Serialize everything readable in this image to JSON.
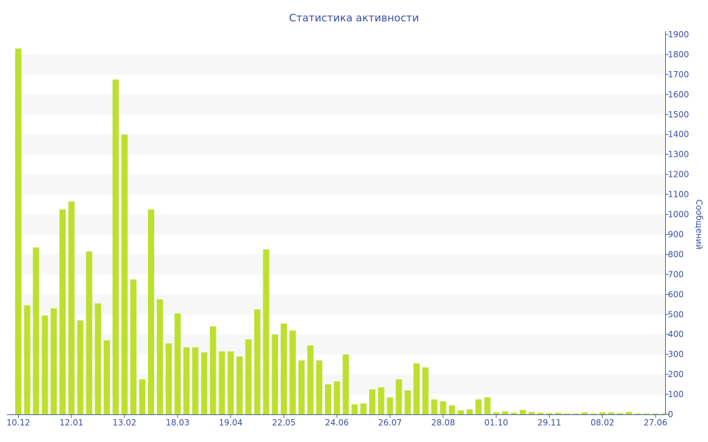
{
  "chart_data": {
    "type": "bar",
    "title": "Статистика активности",
    "ylabel": "Сообщений",
    "xlabel": "",
    "ylim": [
      0,
      1900
    ],
    "y_ticks": [
      0,
      100,
      200,
      300,
      400,
      500,
      600,
      700,
      800,
      900,
      1000,
      1100,
      1200,
      1300,
      1400,
      1500,
      1600,
      1700,
      1800,
      1900
    ],
    "x_tick_labels": [
      "10.12",
      "12.01",
      "13.02",
      "18.03",
      "19.04",
      "22.05",
      "24.06",
      "26.07",
      "28.08",
      "01.10",
      "29.11",
      "08.02",
      "27.06"
    ],
    "x_tick_every": 6,
    "values": [
      1830,
      545,
      835,
      495,
      530,
      1025,
      1065,
      470,
      815,
      555,
      370,
      1675,
      1400,
      675,
      175,
      1025,
      575,
      355,
      505,
      335,
      335,
      310,
      440,
      315,
      315,
      290,
      375,
      525,
      825,
      400,
      455,
      420,
      270,
      345,
      270,
      150,
      165,
      300,
      50,
      55,
      125,
      135,
      85,
      175,
      120,
      255,
      235,
      75,
      65,
      45,
      20,
      25,
      75,
      85,
      10,
      15,
      8,
      22,
      12,
      8,
      6,
      8,
      4,
      4,
      10,
      4,
      10,
      10,
      6,
      12,
      4,
      4,
      4,
      4
    ],
    "bar_color": "#bde02f",
    "axis_color": "#4a5c9e",
    "grid": "alternating bands",
    "legend": "none"
  }
}
